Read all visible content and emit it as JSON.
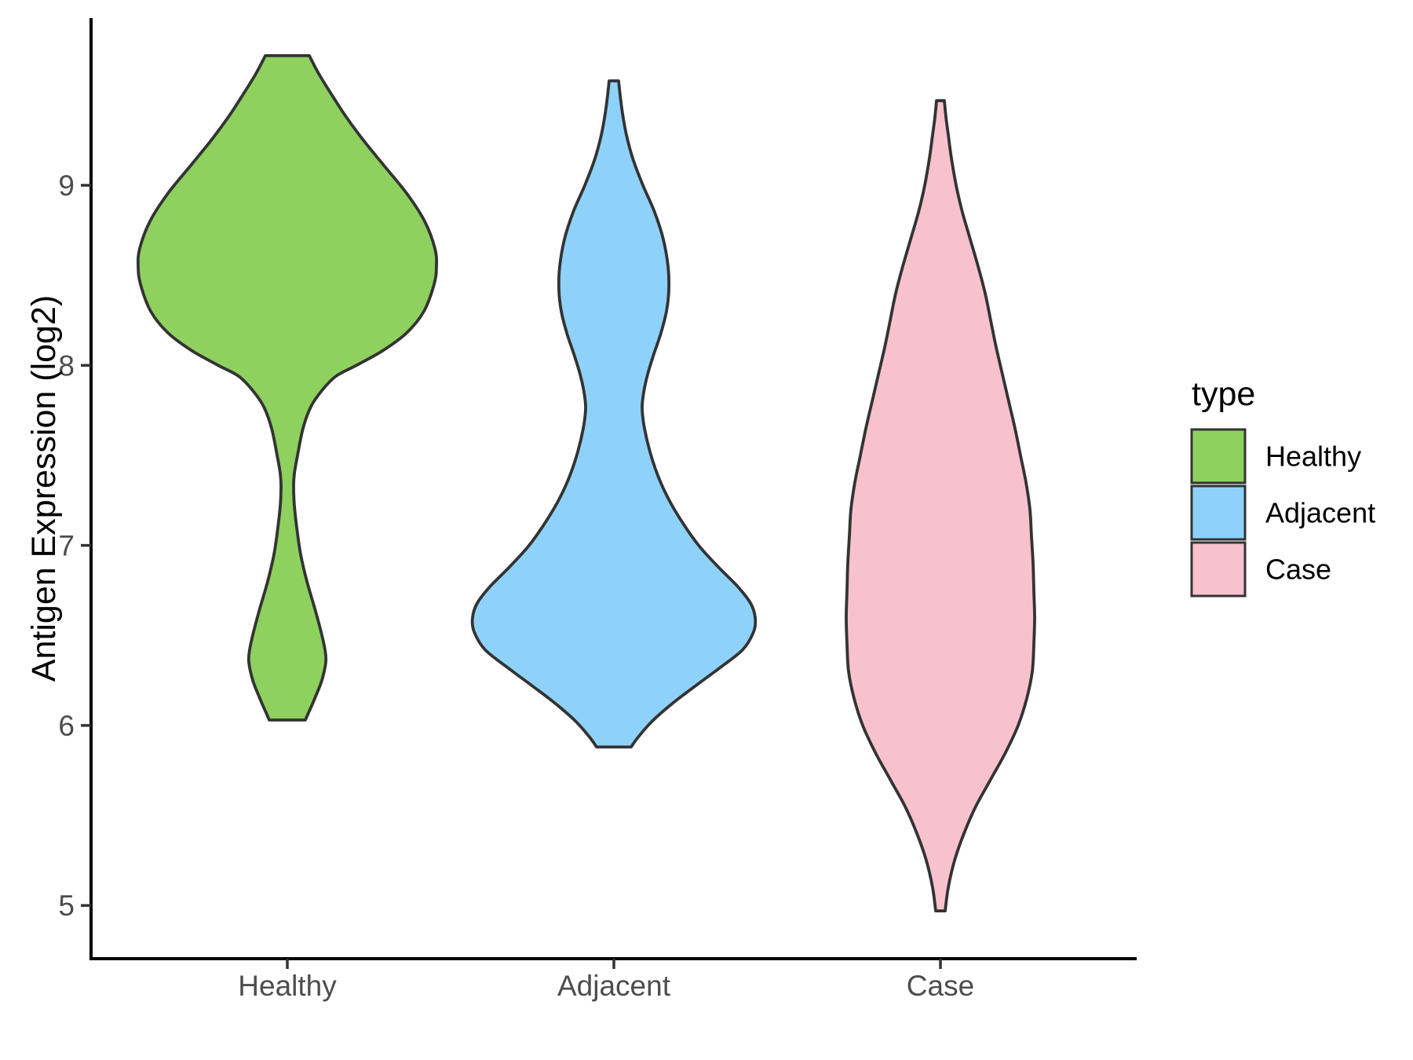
{
  "figure": {
    "background": "#ffffff"
  },
  "chart_data": {
    "type": "violin",
    "title": "",
    "xlabel": "",
    "ylabel": "Antigen Expression (log2)",
    "categories": [
      "Healthy",
      "Adjacent",
      "Case"
    ],
    "y_ticks": [
      5,
      6,
      7,
      8,
      9
    ],
    "ylim": [
      4.7,
      9.95
    ],
    "grid": "off",
    "legend": {
      "title": "type",
      "position": "right",
      "entries": [
        {
          "label": "Healthy",
          "color": "#8ED15E"
        },
        {
          "label": "Adjacent",
          "color": "#8ED2F9"
        },
        {
          "label": "Case",
          "color": "#F7C1CD"
        }
      ]
    },
    "styles": {
      "outline_color": "#333333",
      "outline_width": 3.8,
      "axis_color": "#000000",
      "axis_width": 4,
      "tick_color": "#333333",
      "tick_width": 3.5,
      "axis_text_color": "#4D4D4D",
      "title_text_color": "#000000"
    },
    "violins": [
      {
        "name": "Healthy",
        "color": "#8ED15E",
        "y_range": [
          6.03,
          9.72
        ],
        "profile": [
          [
            9.72,
            28
          ],
          [
            9.62,
            40
          ],
          [
            9.5,
            57
          ],
          [
            9.38,
            75
          ],
          [
            9.25,
            97
          ],
          [
            9.1,
            125
          ],
          [
            8.95,
            153
          ],
          [
            8.8,
            175
          ],
          [
            8.65,
            188
          ],
          [
            8.55,
            190
          ],
          [
            8.45,
            187
          ],
          [
            8.3,
            174
          ],
          [
            8.18,
            152
          ],
          [
            8.08,
            121
          ],
          [
            8.0,
            88
          ],
          [
            7.94,
            62
          ],
          [
            7.86,
            44
          ],
          [
            7.77,
            30
          ],
          [
            7.65,
            20
          ],
          [
            7.5,
            13
          ],
          [
            7.4,
            9
          ],
          [
            7.33,
            8
          ],
          [
            7.22,
            9
          ],
          [
            7.1,
            12
          ],
          [
            6.95,
            17
          ],
          [
            6.8,
            25
          ],
          [
            6.65,
            35
          ],
          [
            6.52,
            43
          ],
          [
            6.42,
            48
          ],
          [
            6.35,
            49
          ],
          [
            6.25,
            44
          ],
          [
            6.15,
            35
          ],
          [
            6.07,
            27
          ],
          [
            6.03,
            23
          ]
        ]
      },
      {
        "name": "Adjacent",
        "color": "#8ED2F9",
        "y_range": [
          5.88,
          9.58
        ],
        "profile": [
          [
            9.58,
            6
          ],
          [
            9.5,
            8
          ],
          [
            9.4,
            11
          ],
          [
            9.28,
            16
          ],
          [
            9.15,
            24
          ],
          [
            9.0,
            37
          ],
          [
            8.85,
            52
          ],
          [
            8.7,
            63
          ],
          [
            8.55,
            69
          ],
          [
            8.42,
            70
          ],
          [
            8.3,
            67
          ],
          [
            8.18,
            60
          ],
          [
            8.05,
            50
          ],
          [
            7.95,
            43
          ],
          [
            7.85,
            38
          ],
          [
            7.76,
            36
          ],
          [
            7.65,
            39
          ],
          [
            7.52,
            46
          ],
          [
            7.4,
            55
          ],
          [
            7.28,
            67
          ],
          [
            7.15,
            84
          ],
          [
            7.0,
            108
          ],
          [
            6.88,
            133
          ],
          [
            6.77,
            158
          ],
          [
            6.68,
            174
          ],
          [
            6.6,
            180
          ],
          [
            6.52,
            178
          ],
          [
            6.42,
            164
          ],
          [
            6.32,
            135
          ],
          [
            6.22,
            104
          ],
          [
            6.12,
            74
          ],
          [
            6.02,
            48
          ],
          [
            5.93,
            30
          ],
          [
            5.88,
            22
          ]
        ]
      },
      {
        "name": "Case",
        "color": "#F7C1CD",
        "y_range": [
          4.97,
          9.47
        ],
        "profile": [
          [
            9.47,
            5
          ],
          [
            9.38,
            7
          ],
          [
            9.28,
            10
          ],
          [
            9.15,
            14
          ],
          [
            9.0,
            20
          ],
          [
            8.85,
            28
          ],
          [
            8.7,
            38
          ],
          [
            8.55,
            48
          ],
          [
            8.4,
            57
          ],
          [
            8.25,
            64
          ],
          [
            8.1,
            71
          ],
          [
            7.95,
            79
          ],
          [
            7.8,
            87
          ],
          [
            7.65,
            95
          ],
          [
            7.5,
            102
          ],
          [
            7.35,
            109
          ],
          [
            7.2,
            114
          ],
          [
            7.05,
            116
          ],
          [
            6.9,
            118
          ],
          [
            6.75,
            119
          ],
          [
            6.6,
            120
          ],
          [
            6.45,
            119
          ],
          [
            6.3,
            117
          ],
          [
            6.15,
            110
          ],
          [
            6.0,
            99
          ],
          [
            5.85,
            83
          ],
          [
            5.7,
            64
          ],
          [
            5.55,
            45
          ],
          [
            5.4,
            30
          ],
          [
            5.25,
            18
          ],
          [
            5.1,
            10
          ],
          [
            4.97,
            6
          ]
        ]
      }
    ]
  }
}
